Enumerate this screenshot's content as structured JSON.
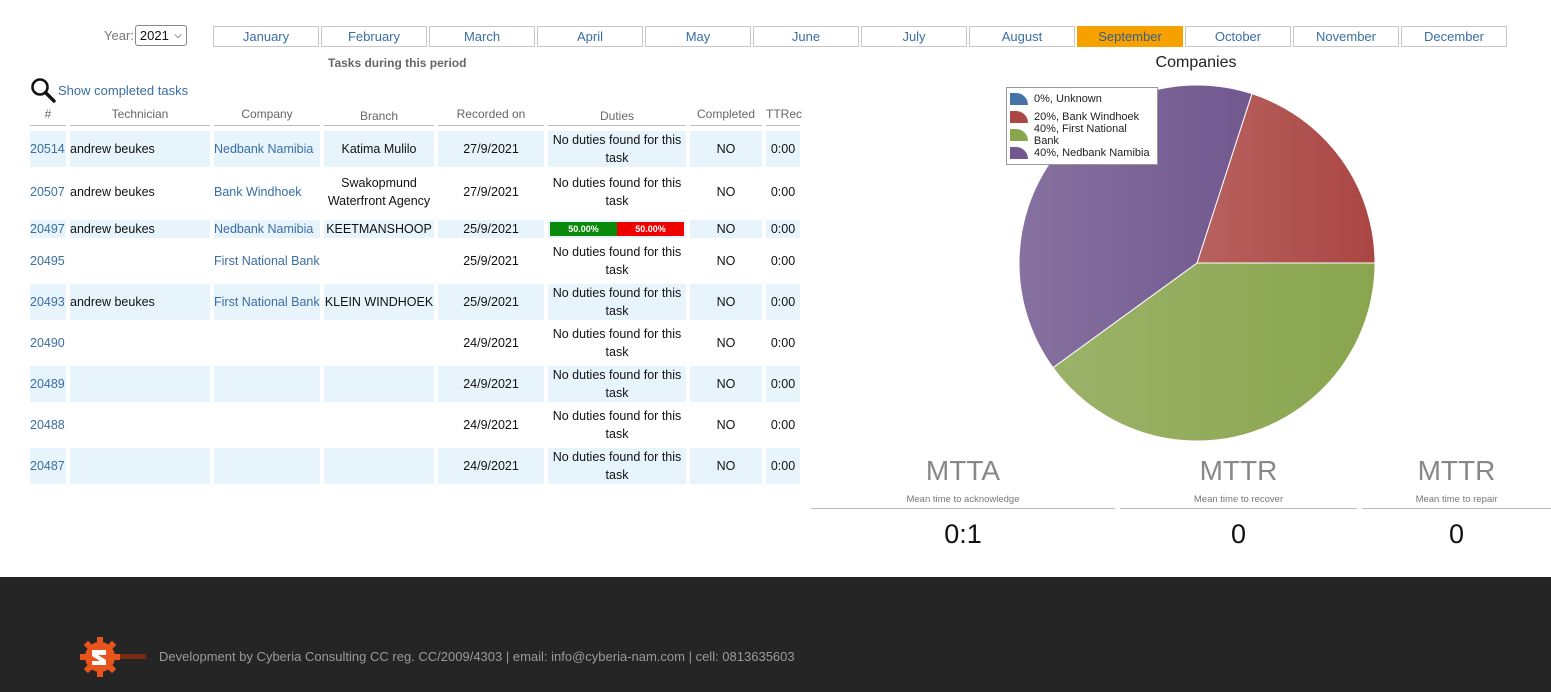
{
  "filter": {
    "year_label": "Year:",
    "year_value": "2021",
    "months": [
      "January",
      "February",
      "March",
      "April",
      "May",
      "June",
      "July",
      "August",
      "September",
      "October",
      "November",
      "December"
    ],
    "active_month": "September"
  },
  "period_label": "Tasks during this period",
  "show_completed_label": "Show completed tasks",
  "table": {
    "headers": {
      "id": "#",
      "technician": "Technician",
      "company": "Company",
      "branch": "Branch",
      "recorded": "Recorded on",
      "duties": "Duties",
      "completed": "Completed",
      "ttr": "TTRec"
    },
    "rows": [
      {
        "id": "20514",
        "technician": "andrew beukes",
        "company": "Nedbank Namibia",
        "branch": "Katima Mulilo",
        "recorded": "27/9/2021",
        "duties": "No duties found for this task",
        "completed": "NO",
        "ttr": "0:00"
      },
      {
        "id": "20507",
        "technician": "andrew beukes",
        "company": "Bank Windhoek",
        "branch": "Swakopmund Waterfront Agency",
        "recorded": "27/9/2021",
        "duties": "No duties found for this task",
        "completed": "NO",
        "ttr": "0:00"
      },
      {
        "id": "20497",
        "technician": "andrew beukes",
        "company": "Nedbank Namibia",
        "branch": "KEETMANSHOOP",
        "recorded": "25/9/2021",
        "duties_progress": {
          "done": "50.00%",
          "pending": "50.00%"
        },
        "completed": "NO",
        "ttr": "0:00"
      },
      {
        "id": "20495",
        "technician": "",
        "company": "First National Bank",
        "branch": "",
        "recorded": "25/9/2021",
        "duties": "No duties found for this task",
        "completed": "NO",
        "ttr": "0:00"
      },
      {
        "id": "20493",
        "technician": "andrew beukes",
        "company": "First National Bank",
        "branch": "KLEIN WINDHOEK",
        "recorded": "25/9/2021",
        "duties": "No duties found for this task",
        "completed": "NO",
        "ttr": "0:00"
      },
      {
        "id": "20490",
        "technician": "",
        "company": "",
        "branch": "",
        "recorded": "24/9/2021",
        "duties": "No duties found for this task",
        "completed": "NO",
        "ttr": "0:00"
      },
      {
        "id": "20489",
        "technician": "",
        "company": "",
        "branch": "",
        "recorded": "24/9/2021",
        "duties": "No duties found for this task",
        "completed": "NO",
        "ttr": "0:00"
      },
      {
        "id": "20488",
        "technician": "",
        "company": "",
        "branch": "",
        "recorded": "24/9/2021",
        "duties": "No duties found for this task",
        "completed": "NO",
        "ttr": "0:00"
      },
      {
        "id": "20487",
        "technician": "",
        "company": "",
        "branch": "",
        "recorded": "24/9/2021",
        "duties": "No duties found for this task",
        "completed": "NO",
        "ttr": "0:00"
      }
    ]
  },
  "chart_data": {
    "type": "pie",
    "title": "Companies",
    "categories": [
      "Unknown",
      "Bank Windhoek",
      "First National Bank",
      "Nedbank Namibia"
    ],
    "values": [
      0,
      20,
      40,
      40
    ],
    "legend": [
      "0%, Unknown",
      "20%, Bank Windhoek",
      "40%, First National Bank",
      "40%, Nedbank Namibia"
    ],
    "colors": [
      "#4572a7",
      "#aa4643",
      "#89a54e",
      "#71588f"
    ],
    "legend_position": "top-left"
  },
  "metrics": [
    {
      "title": "MTTA",
      "subtitle": "Mean time to acknowledge",
      "value": "0:1"
    },
    {
      "title": "MTTR",
      "subtitle": "Mean time to recover",
      "value": "0"
    },
    {
      "title": "MTTR",
      "subtitle": "Mean time to repair",
      "value": "0"
    }
  ],
  "footer": {
    "text": "Development by Cyberia Consulting CC reg. CC/2009/4303 | email: info@cyberia-nam.com | cell: 0813635603",
    "logo_icon": "gear-logo-icon"
  }
}
